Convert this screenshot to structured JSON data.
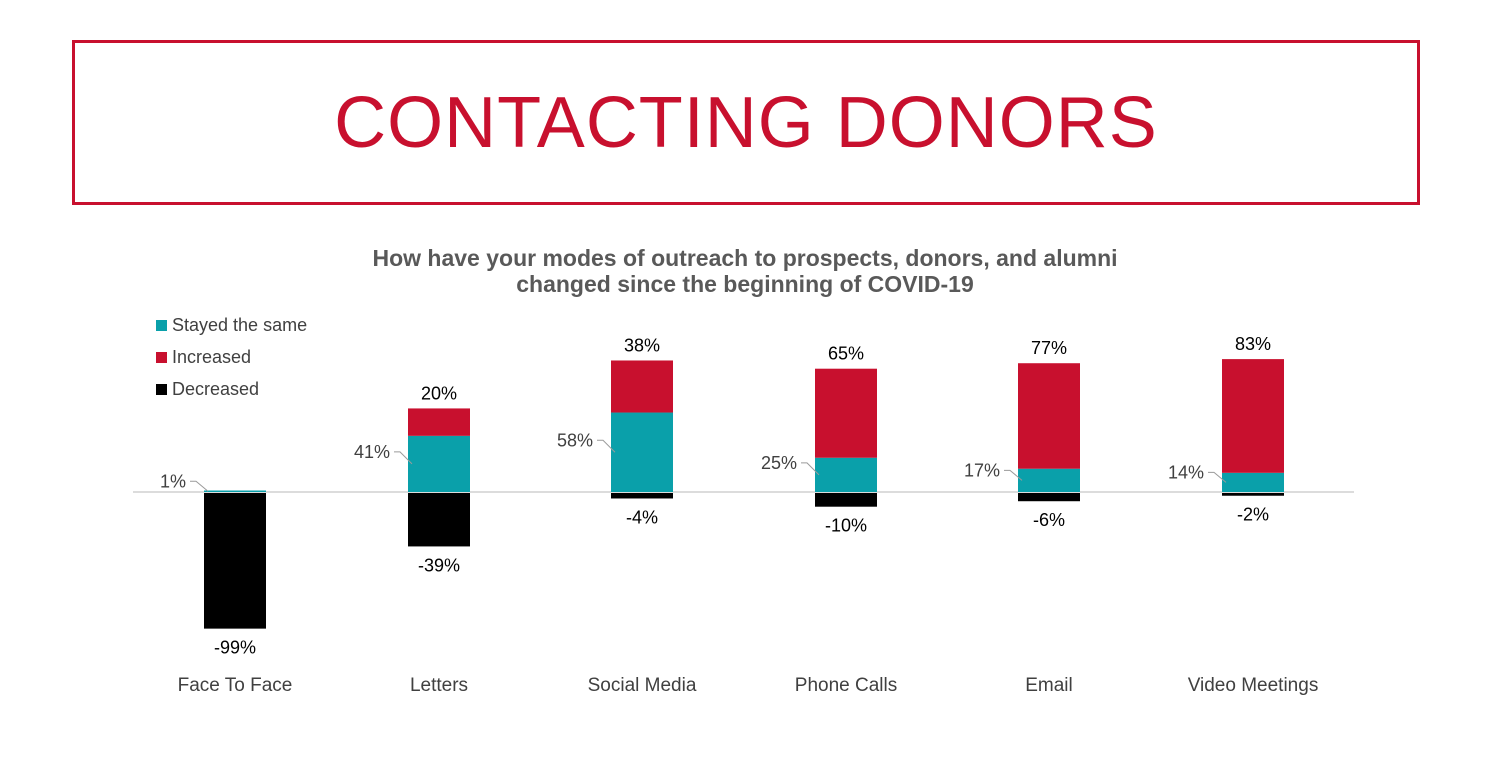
{
  "slide": {
    "title": "CONTACTING DONORS"
  },
  "chart_data": {
    "type": "bar",
    "stacked": true,
    "title_lines": [
      "How have your modes of outreach to prospects, donors, and alumni",
      "changed since the beginning of COVID-19"
    ],
    "categories": [
      "Face To Face",
      "Letters",
      "Social Media",
      "Phone Calls",
      "Email",
      "Video Meetings"
    ],
    "series": [
      {
        "name": "Stayed the same",
        "color": "#0aa0aa",
        "values": [
          1,
          41,
          58,
          25,
          17,
          14
        ]
      },
      {
        "name": "Increased",
        "color": "#c8102e",
        "values": [
          0,
          20,
          38,
          65,
          77,
          83
        ]
      },
      {
        "name": "Decreased",
        "color": "#000000",
        "values": [
          -99,
          -39,
          -4,
          -10,
          -6,
          -2
        ]
      }
    ],
    "labels": {
      "stayed": [
        "1%",
        "41%",
        "58%",
        "25%",
        "17%",
        "14%"
      ],
      "increased": [
        "",
        "20%",
        "38%",
        "65%",
        "77%",
        "83%"
      ],
      "decreased": [
        "-99%",
        "-39%",
        "-4%",
        "-10%",
        "-6%",
        "-2%"
      ]
    },
    "legend_position": "top-left",
    "ylim": [
      -100,
      100
    ],
    "grid": false
  }
}
